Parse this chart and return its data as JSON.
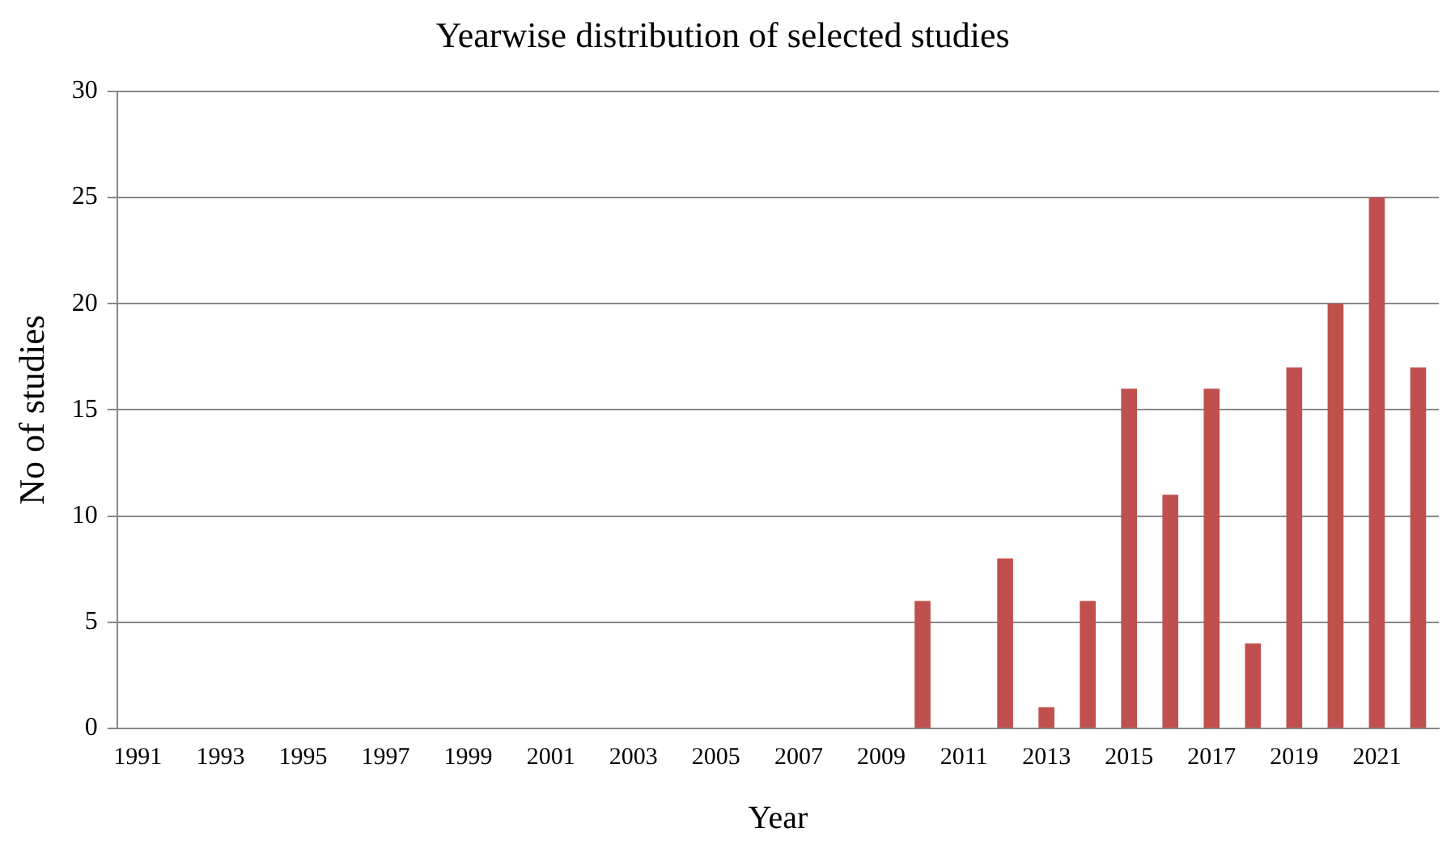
{
  "chart_data": {
    "type": "bar",
    "title": "Yearwise distribution of selected studies",
    "xlabel": "Year",
    "ylabel": "No of studies",
    "categories": [
      "1991",
      null,
      "1993",
      null,
      "1995",
      null,
      "1997",
      null,
      "1999",
      null,
      "2001",
      null,
      "2003",
      null,
      "2005",
      null,
      "2007",
      null,
      "2009",
      null,
      "2011",
      null,
      "2013",
      null,
      "2015",
      null,
      "2017",
      null,
      "2019",
      null,
      "2021",
      null
    ],
    "values": [
      0,
      0,
      0,
      0,
      0,
      0,
      0,
      0,
      0,
      0,
      0,
      0,
      0,
      0,
      0,
      0,
      0,
      0,
      0,
      6,
      0,
      8,
      1,
      6,
      16,
      11,
      16,
      4,
      17,
      20,
      25,
      17
    ],
    "color": "#c0504d",
    "ylim": [
      0,
      30
    ],
    "yticks": [
      0,
      5,
      10,
      15,
      20,
      25,
      30
    ],
    "grid": "y",
    "legend": false
  }
}
